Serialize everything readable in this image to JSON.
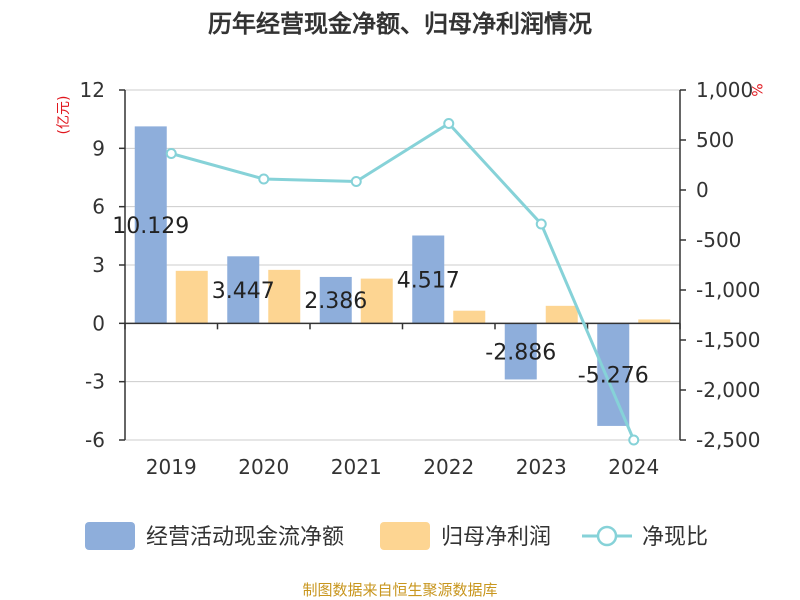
{
  "chart_data": {
    "type": "bar",
    "title": "历年经营现金净额、归母净利润情况",
    "categories": [
      "2019",
      "2020",
      "2021",
      "2022",
      "2023",
      "2024"
    ],
    "series": [
      {
        "name": "经营活动现金流净额",
        "type": "bar",
        "axis": "left",
        "color": "#8eaedb",
        "values": [
          10.129,
          3.447,
          2.386,
          4.517,
          -2.886,
          -5.276
        ],
        "labels": [
          "10.129",
          "3.447",
          "2.386",
          "4.517",
          "-2.886",
          "-5.276"
        ]
      },
      {
        "name": "归母净利润",
        "type": "bar",
        "axis": "left",
        "color": "#fdd592",
        "values": [
          2.7,
          2.75,
          2.3,
          0.65,
          0.9,
          0.2
        ]
      },
      {
        "name": "净现比",
        "type": "line",
        "axis": "right",
        "color": "#86d2d8",
        "values": [
          365,
          110,
          85,
          665,
          -340,
          -2500
        ]
      }
    ],
    "y_left": {
      "unit": "(亿元)",
      "min": -6,
      "max": 12,
      "ticks": [
        "-6",
        "-3",
        "0",
        "3",
        "6",
        "9",
        "12"
      ]
    },
    "y_right": {
      "unit": "%",
      "min": -2500,
      "max": 1000,
      "ticks": [
        "-2,500",
        "-2,000",
        "-1,500",
        "-1,000",
        "-500",
        "0",
        "500",
        "1,000"
      ]
    },
    "grid": true,
    "legend_position": "bottom",
    "source": "制图数据来自恒生聚源数据库"
  }
}
